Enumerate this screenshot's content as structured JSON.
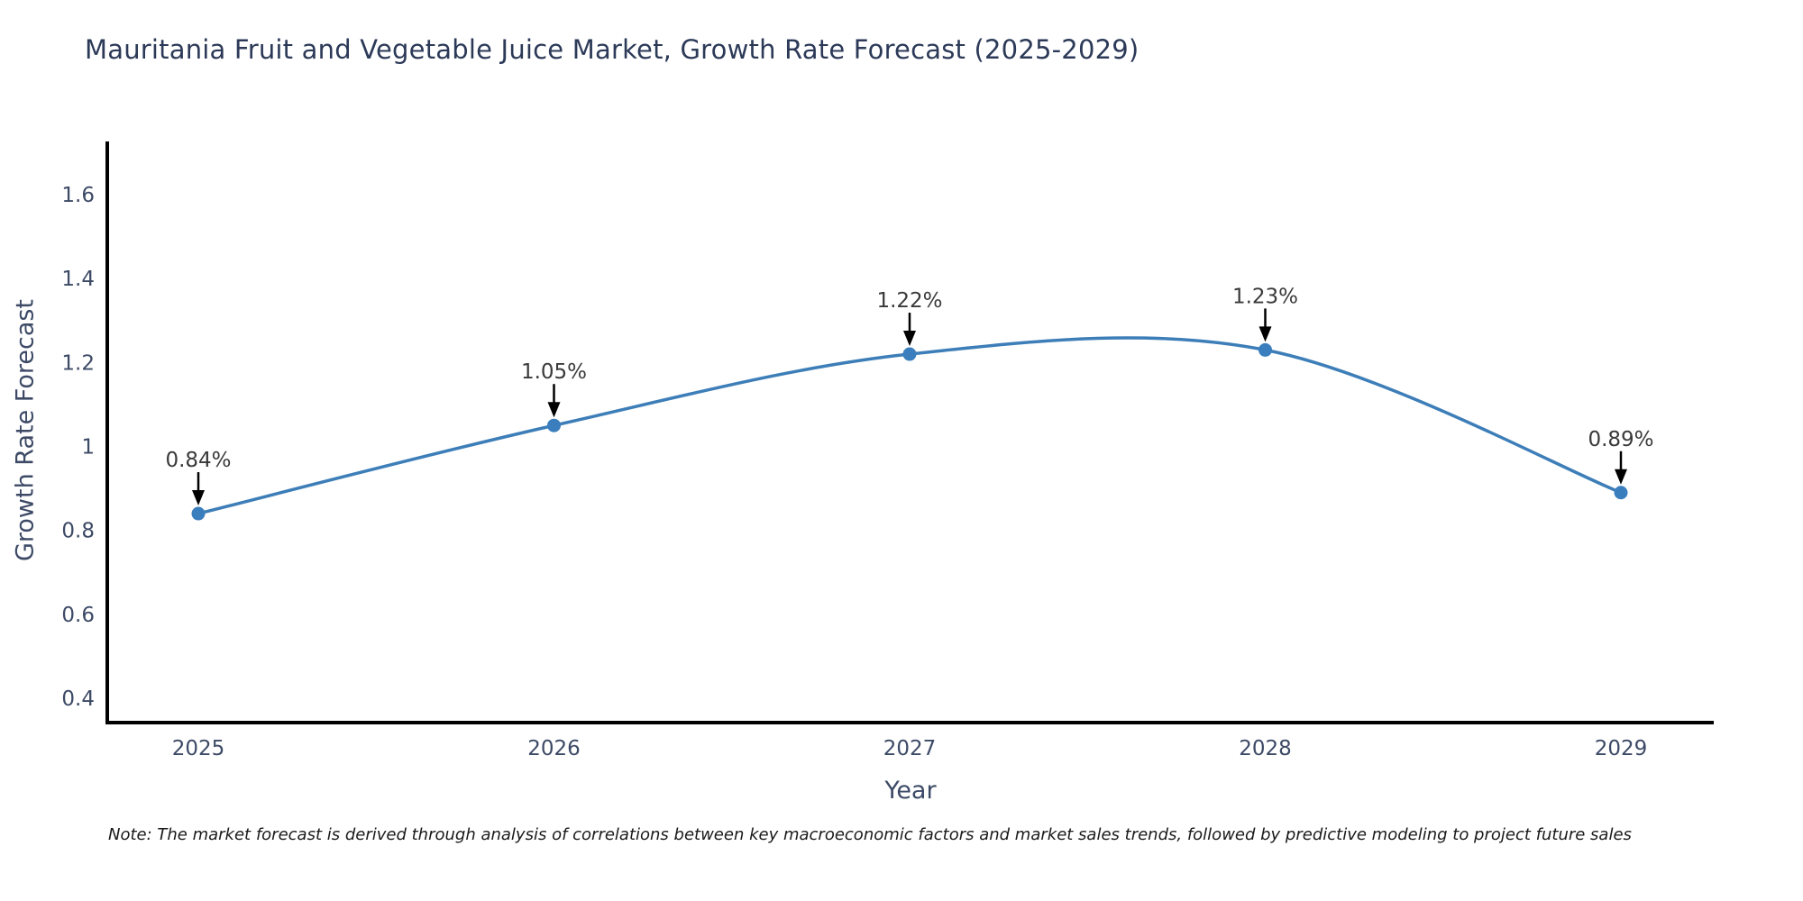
{
  "title": "Mauritania Fruit and Vegetable Juice Market, Growth Rate Forecast (2025-2029)",
  "note": "Note: The market forecast is derived through analysis of correlations between key macroeconomic factors and market sales trends, followed by predictive modeling to project future sales",
  "chart_data": {
    "type": "line",
    "title": "Mauritania Fruit and Vegetable Juice Market, Growth Rate Forecast (2025-2029)",
    "xlabel": "Year",
    "ylabel": "Growth Rate Forecast",
    "x": [
      2025,
      2026,
      2027,
      2028,
      2029
    ],
    "values": [
      0.84,
      1.05,
      1.22,
      1.23,
      0.89
    ],
    "point_labels": [
      "0.84%",
      "1.05%",
      "1.22%",
      "1.23%",
      "0.89%"
    ],
    "xtick_labels": [
      "2025",
      "2026",
      "2027",
      "2028",
      "2029"
    ],
    "ytick_values": [
      0.4,
      0.6,
      0.8,
      1,
      1.2,
      1.4,
      1.6
    ],
    "ytick_labels": [
      "0.4",
      "0.6",
      "0.8",
      "1",
      "1.2",
      "1.4",
      "1.6"
    ],
    "xlim": [
      2024.74,
      2029.26
    ],
    "ylim": [
      0.34,
      1.72
    ],
    "grid": false,
    "legend": "none",
    "line_shape": "spline",
    "annotation_style": "arrow-down-to-point"
  },
  "colors": {
    "line": "#3d7eb8",
    "marker": "#3a7ebd",
    "axis": "#000000",
    "tick_label": "#3d4a66",
    "title": "#2c3a58",
    "annotation_text": "#3a3a3a",
    "annotation_arrow": "#000000",
    "background": "#ffffff"
  }
}
